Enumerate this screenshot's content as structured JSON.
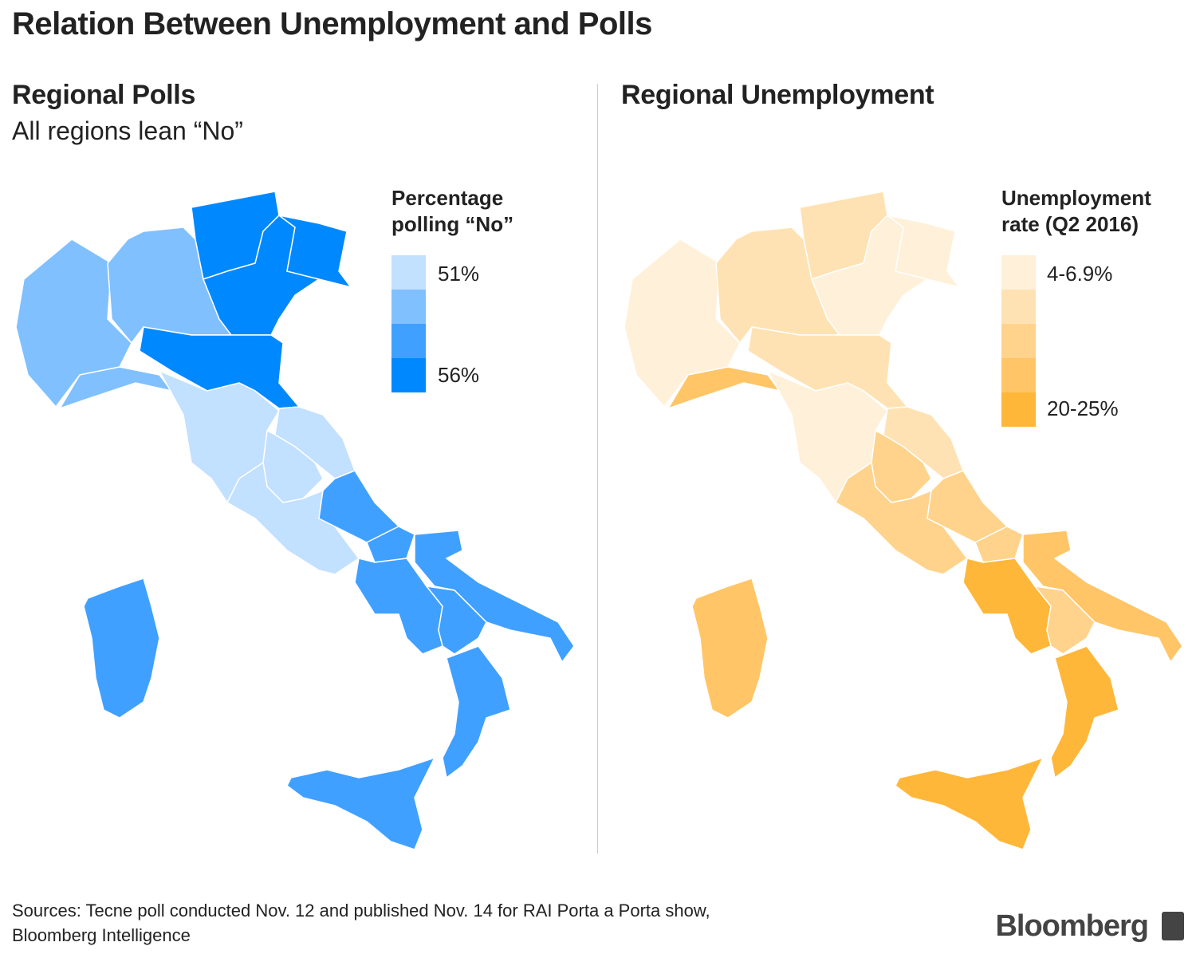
{
  "title": "Relation Between Unemployment and Polls",
  "left": {
    "heading": "Regional Polls",
    "subtitle": "All regions lean “No”",
    "legend": {
      "title_line1": "Percentage",
      "title_line2": "polling “No”",
      "low_label": "51%",
      "high_label": "56%",
      "colors": [
        "#c2e0ff",
        "#80c0ff",
        "#40a0ff",
        "#0088ff"
      ]
    },
    "region_bins": [
      1,
      1,
      1,
      3,
      3,
      3,
      3,
      0,
      0,
      0,
      0,
      2,
      2,
      2,
      2,
      2,
      2,
      2,
      2
    ]
  },
  "right": {
    "heading": "Regional Unemployment",
    "legend": {
      "title_line1": "Unemployment",
      "title_line2": "rate (Q2 2016)",
      "low_label": "4-6.9%",
      "high_label": "20-25%",
      "colors": [
        "#fff0d9",
        "#ffe2b3",
        "#ffd38c",
        "#ffc566",
        "#ffb73a"
      ]
    },
    "region_bins": [
      0,
      3,
      1,
      1,
      0,
      0,
      1,
      0,
      1,
      2,
      2,
      2,
      2,
      4,
      3,
      2,
      4,
      4,
      3
    ]
  },
  "footer": {
    "source_line1": "Sources: Tecne poll conducted Nov. 12 and published Nov. 14 for RAI Porta a Porta show,",
    "source_line2": "Bloomberg Intelligence",
    "brand": "Bloomberg"
  }
}
